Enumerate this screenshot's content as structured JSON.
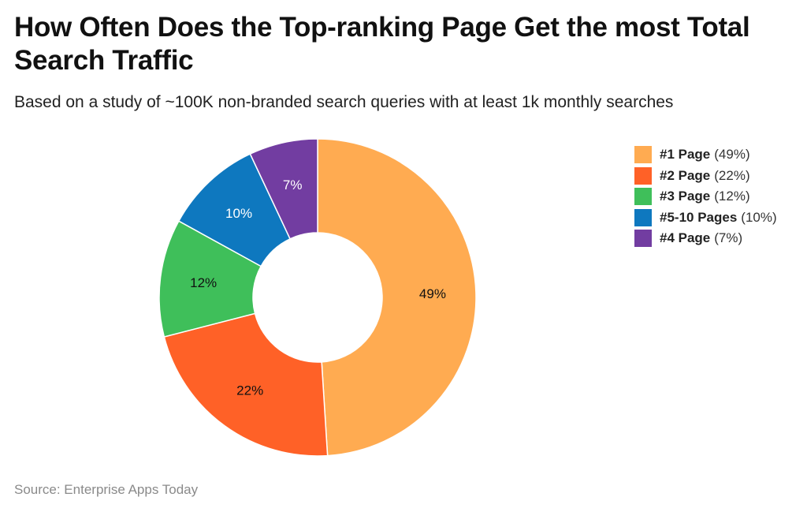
{
  "title": "How Often Does the Top-ranking Page Get the most Total Search Traffic",
  "subtitle": "Based on a study of ~100K non-branded search queries with at least 1k monthly searches",
  "source": "Source: Enterprise Apps Today",
  "chart_data": {
    "type": "pie",
    "variant": "donut",
    "legend_position": "right",
    "slices": [
      {
        "name": "#1 Page",
        "value": 49,
        "value_label": "(49%)",
        "data_label": "49%",
        "color": "#FFAB51",
        "label_color": "#111111"
      },
      {
        "name": "#2 Page",
        "value": 22,
        "value_label": "(22%)",
        "data_label": "22%",
        "color": "#FF6127",
        "label_color": "#111111"
      },
      {
        "name": "#3 Page",
        "value": 12,
        "value_label": "(12%)",
        "data_label": "12%",
        "color": "#3FBF5A",
        "label_color": "#111111"
      },
      {
        "name": "#5-10 Pages",
        "value": 10,
        "value_label": "(10%)",
        "data_label": "10%",
        "color": "#0E78BF",
        "label_color": "#ffffff"
      },
      {
        "name": "#4 Page",
        "value": 7,
        "value_label": "(7%)",
        "data_label": "7%",
        "color": "#723DA1",
        "label_color": "#ffffff"
      }
    ]
  }
}
